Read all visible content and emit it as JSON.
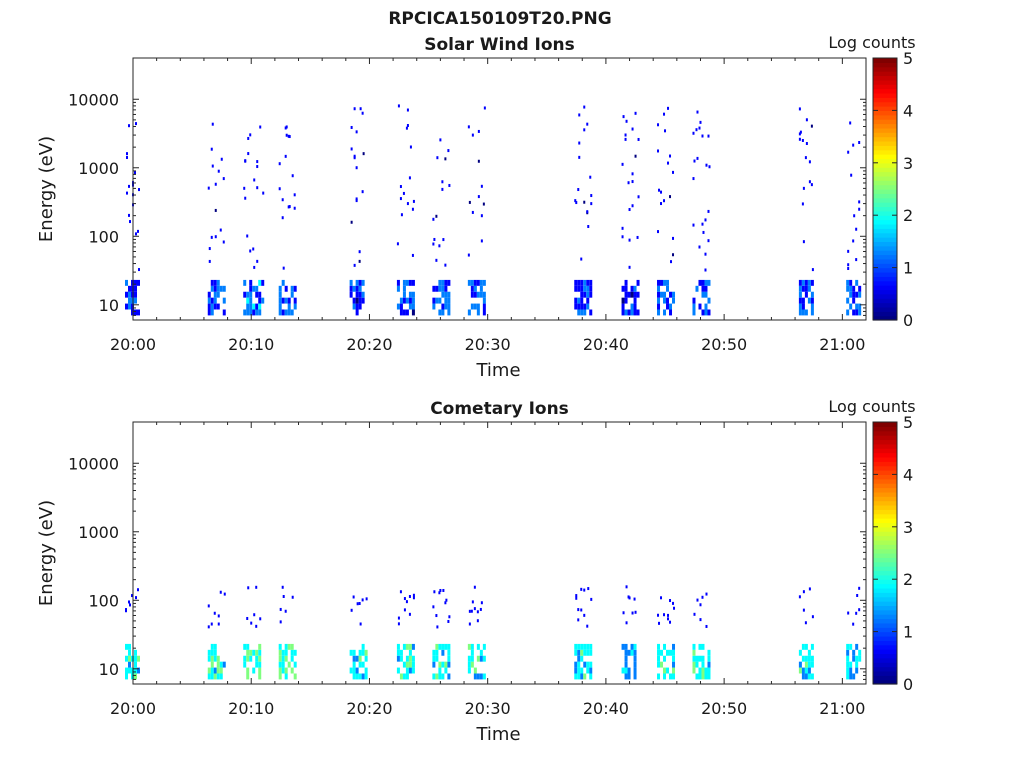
{
  "figure": {
    "title": "RPCICA150109T20.PNG"
  },
  "colormap": [
    "#00007f",
    "#0000ff",
    "#007fff",
    "#00ffff",
    "#7fff7f",
    "#ffff00",
    "#ff7f00",
    "#ff0000",
    "#7f0000"
  ],
  "chart_data": [
    {
      "type": "heatmap",
      "title": "Solar Wind Ions",
      "xlabel": "Time",
      "ylabel": "Energy (eV)",
      "yscale": "log",
      "xlim": [
        "20:00",
        "21:02"
      ],
      "ylim": [
        6,
        40000
      ],
      "x_ticks": [
        "20:00",
        "20:10",
        "20:20",
        "20:30",
        "20:40",
        "20:50",
        "21:00"
      ],
      "y_ticks": [
        10,
        100,
        1000,
        10000
      ],
      "y_tick_labels": [
        "10",
        "100",
        "1000",
        "10000"
      ],
      "colorbar": {
        "label": "Log counts",
        "range": [
          0,
          5
        ],
        "ticks": [
          "0",
          "1",
          "2",
          "3",
          "4",
          "5"
        ]
      },
      "clusters": [
        {
          "t": "20:00",
          "low_log": 0.8,
          "high_log": 0.3,
          "count": 5
        },
        {
          "t": "20:07",
          "low_log": 1.0,
          "high_log": 0.3,
          "count": 6
        },
        {
          "t": "20:10",
          "low_log": 1.2,
          "high_log": 0.4,
          "count": 7
        },
        {
          "t": "20:13",
          "low_log": 1.0,
          "high_log": 0.3,
          "count": 6
        },
        {
          "t": "20:19",
          "low_log": 0.7,
          "high_log": 0.3,
          "count": 5
        },
        {
          "t": "20:23",
          "low_log": 0.8,
          "high_log": 0.3,
          "count": 6
        },
        {
          "t": "20:26",
          "low_log": 0.9,
          "high_log": 0.3,
          "count": 6
        },
        {
          "t": "20:29",
          "low_log": 1.0,
          "high_log": 0.3,
          "count": 6
        },
        {
          "t": "20:38",
          "low_log": 0.9,
          "high_log": 0.3,
          "count": 6
        },
        {
          "t": "20:42",
          "low_log": 0.6,
          "high_log": 0.3,
          "count": 6
        },
        {
          "t": "20:45",
          "low_log": 0.9,
          "high_log": 0.3,
          "count": 6
        },
        {
          "t": "20:48",
          "low_log": 1.0,
          "high_log": 0.4,
          "count": 6
        },
        {
          "t": "20:57",
          "low_log": 1.0,
          "high_log": 0.3,
          "count": 5
        },
        {
          "t": "21:01",
          "low_log": 0.8,
          "high_log": 0.3,
          "count": 5
        }
      ]
    },
    {
      "type": "heatmap",
      "title": "Cometary Ions",
      "xlabel": "Time",
      "ylabel": "Energy (eV)",
      "yscale": "log",
      "xlim": [
        "20:00",
        "21:02"
      ],
      "ylim": [
        6,
        40000
      ],
      "x_ticks": [
        "20:00",
        "20:10",
        "20:20",
        "20:30",
        "20:40",
        "20:50",
        "21:00"
      ],
      "y_ticks": [
        10,
        100,
        1000,
        10000
      ],
      "y_tick_labels": [
        "10",
        "100",
        "1000",
        "10000"
      ],
      "colorbar": {
        "label": "Log counts",
        "range": [
          0,
          5
        ],
        "ticks": [
          "0",
          "1",
          "2",
          "3",
          "4",
          "5"
        ]
      },
      "clusters": [
        {
          "t": "20:00",
          "low_log": 1.8,
          "high_log": 0.4,
          "count": 5
        },
        {
          "t": "20:07",
          "low_log": 2.0,
          "high_log": 0.4,
          "count": 6
        },
        {
          "t": "20:10",
          "low_log": 2.1,
          "high_log": 0.4,
          "count": 6
        },
        {
          "t": "20:13",
          "low_log": 2.1,
          "high_log": 0.4,
          "count": 6
        },
        {
          "t": "20:19",
          "low_log": 1.9,
          "high_log": 0.4,
          "count": 6
        },
        {
          "t": "20:23",
          "low_log": 2.0,
          "high_log": 0.4,
          "count": 6
        },
        {
          "t": "20:26",
          "low_log": 1.9,
          "high_log": 0.4,
          "count": 6
        },
        {
          "t": "20:29",
          "low_log": 1.8,
          "high_log": 0.4,
          "count": 6
        },
        {
          "t": "20:38",
          "low_log": 1.8,
          "high_log": 0.4,
          "count": 6
        },
        {
          "t": "20:42",
          "low_log": 1.5,
          "high_log": 0.4,
          "count": 5
        },
        {
          "t": "20:45",
          "low_log": 2.0,
          "high_log": 0.4,
          "count": 6
        },
        {
          "t": "20:48",
          "low_log": 1.9,
          "high_log": 0.4,
          "count": 6
        },
        {
          "t": "20:57",
          "low_log": 1.8,
          "high_log": 0.4,
          "count": 5
        },
        {
          "t": "21:01",
          "low_log": 1.8,
          "high_log": 0.4,
          "count": 5
        }
      ]
    }
  ]
}
